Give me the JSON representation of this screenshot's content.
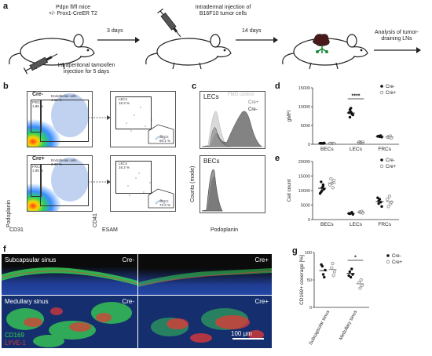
{
  "panel_a": {
    "letter": "a",
    "mouse_label": "Pdpn fl/fl mice\n+/- Prox1-CreER T2",
    "tamoxifen_label": "Intraperitonal tamoxifen\ninjection for 5 days",
    "step1_arrow": "3 days",
    "tumor_injection_label": "Intradermal injection of\nB16F10 tumor cells",
    "step2_arrow": "14 days",
    "analysis_label": "Analysis of tumor-\ndraining LNs"
  },
  "panel_b": {
    "letter": "b",
    "xlabel_left": "CD31",
    "ylabel_left": "Podoplanin",
    "xlabel_right": "ESAM",
    "ylabel_right": "CD41",
    "plots": [
      {
        "genotype": "Cre-",
        "frc_gate": "FRCs\n1.86 %",
        "endo_gate": "Endothelial cells\n4.12 %",
        "lec_gate": "LECs\n18.3 %",
        "bec_gate": "BECs\n60.1 %"
      },
      {
        "genotype": "Cre+",
        "frc_gate": "FRCs\n1.85 %",
        "endo_gate": "Endothelial cells\n3.37 %",
        "lec_gate": "LECs\n16.2 %",
        "bec_gate": "BECs\n72.3 %"
      }
    ]
  },
  "panel_c": {
    "letter": "c",
    "ylabel": "Counts (mode)",
    "xlabel": "Podoplanin",
    "top_title": "LECs",
    "bottom_title": "BECs",
    "legend": [
      "FMO control",
      "Cre+",
      "Cre-"
    ],
    "colors": {
      "fmo": "#d9d9d9",
      "creplus": "#9a9a9a",
      "creminus": "#6e6e6e"
    }
  },
  "panel_d": {
    "letter": "d",
    "legend": [
      "Cre-",
      "Cre+"
    ],
    "significance": "****"
  },
  "panel_e": {
    "letter": "e",
    "legend": [
      "Cre-",
      "Cre+"
    ]
  },
  "panel_f": {
    "letter": "f",
    "top_left_label": "Subcapsular sinus",
    "top_left_genotype": "Cre-",
    "top_right_genotype": "Cre+",
    "bottom_left_label": "Medullary sinus",
    "bottom_left_genotype": "Cre-",
    "bottom_right_genotype": "Cre+",
    "stain1": "CD169",
    "stain2": "LYVE-1",
    "scale_bar": "100 µm",
    "colors": {
      "stain1": "#39d353",
      "stain2": "#e53935",
      "dapi": "#1f3b8f"
    }
  },
  "panel_g": {
    "letter": "g",
    "legend": [
      "Cre-",
      "Cre+"
    ],
    "significance": "*"
  },
  "chart_data": [
    {
      "type": "scatter",
      "panel": "d",
      "ylabel": "gMFI",
      "categories": [
        "BECs",
        "LECs",
        "FRCs"
      ],
      "ylim": [
        0,
        15000
      ],
      "yticks": [
        0,
        5000,
        10000,
        15000
      ],
      "series": [
        {
          "name": "Cre-",
          "points": [
            [
              0,
              300
            ],
            [
              0,
              250
            ],
            [
              0,
              200
            ],
            [
              0,
              350
            ],
            [
              0,
              280
            ],
            [
              0,
              220
            ],
            [
              1,
              9200
            ],
            [
              1,
              8600
            ],
            [
              1,
              8200
            ],
            [
              1,
              7800
            ],
            [
              1,
              8400
            ],
            [
              1,
              7200
            ],
            [
              1,
              9600
            ],
            [
              1,
              8000
            ],
            [
              2,
              2200
            ],
            [
              2,
              2000
            ],
            [
              2,
              2300
            ],
            [
              2,
              1900
            ],
            [
              2,
              2100
            ]
          ],
          "means": [
            270,
            8300,
            2100
          ]
        },
        {
          "name": "Cre+",
          "points": [
            [
              0,
              200
            ],
            [
              0,
              180
            ],
            [
              0,
              250
            ],
            [
              0,
              220
            ],
            [
              0,
              210
            ],
            [
              1,
              600
            ],
            [
              1,
              500
            ],
            [
              1,
              450
            ],
            [
              1,
              550
            ],
            [
              1,
              520
            ],
            [
              2,
              2000
            ],
            [
              2,
              1800
            ],
            [
              2,
              2200
            ],
            [
              2,
              1700
            ],
            [
              2,
              1900
            ]
          ],
          "means": [
            210,
            520,
            1920
          ]
        }
      ]
    },
    {
      "type": "scatter",
      "panel": "e",
      "ylabel": "Cell count",
      "categories": [
        "BECs",
        "LECs",
        "FRCs"
      ],
      "ylim": [
        0,
        20000
      ],
      "yticks": [
        0,
        5000,
        10000,
        15000,
        20000
      ],
      "series": [
        {
          "name": "Cre-",
          "points": [
            [
              0,
              9500
            ],
            [
              0,
              11000
            ],
            [
              0,
              12000
            ],
            [
              0,
              10500
            ],
            [
              0,
              9000
            ],
            [
              0,
              13000
            ],
            [
              0,
              10000
            ],
            [
              0,
              11500
            ],
            [
              1,
              2000
            ],
            [
              1,
              2200
            ],
            [
              1,
              2500
            ],
            [
              1,
              1800
            ],
            [
              1,
              2100
            ],
            [
              2,
              5500
            ],
            [
              2,
              7000
            ],
            [
              2,
              6000
            ],
            [
              2,
              4500
            ],
            [
              2,
              7500
            ],
            [
              2,
              6500
            ]
          ],
          "means": [
            10800,
            2120,
            6170
          ]
        },
        {
          "name": "Cre+",
          "points": [
            [
              0,
              14000
            ],
            [
              0,
              12500
            ],
            [
              0,
              11000
            ],
            [
              0,
              13500
            ],
            [
              0,
              12000
            ],
            [
              1,
              2600
            ],
            [
              1,
              2400
            ],
            [
              1,
              2800
            ],
            [
              1,
              2300
            ],
            [
              2,
              4500
            ],
            [
              2,
              8000
            ],
            [
              2,
              5500
            ],
            [
              2,
              6000
            ],
            [
              2,
              7000
            ]
          ],
          "means": [
            12600,
            2520,
            6200
          ]
        }
      ]
    },
    {
      "type": "scatter",
      "panel": "g",
      "ylabel": "CD169+ coverage [%]",
      "categories": [
        "Subcapsular sinus",
        "Medullary sinus"
      ],
      "ylim": [
        0,
        100
      ],
      "yticks": [
        0,
        50,
        100
      ],
      "series": [
        {
          "name": "Cre-",
          "points": [
            [
              0,
              75
            ],
            [
              0,
              60
            ],
            [
              0,
              55
            ],
            [
              0,
              68
            ],
            [
              0,
              78
            ],
            [
              1,
              65
            ],
            [
              1,
              55
            ],
            [
              1,
              70
            ],
            [
              1,
              60
            ],
            [
              1,
              58
            ]
          ],
          "means": [
            67,
            62
          ]
        },
        {
          "name": "Cre+",
          "points": [
            [
              0,
              72
            ],
            [
              0,
              80
            ],
            [
              0,
              58
            ],
            [
              0,
              65
            ],
            [
              1,
              45
            ],
            [
              1,
              35
            ],
            [
              1,
              50
            ],
            [
              1,
              40
            ]
          ],
          "means": [
            69,
            43
          ]
        }
      ]
    }
  ]
}
